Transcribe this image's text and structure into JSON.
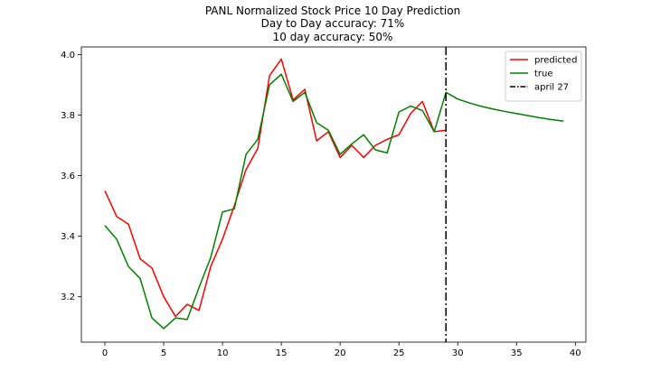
{
  "chart_data": {
    "type": "line",
    "title_lines": [
      "PANL Normalized Stock Price 10 Day Prediction",
      "Day to Day accuracy: 71%",
      "10 day accuracy: 50%"
    ],
    "xlim": [
      -2,
      40.9
    ],
    "ylim": [
      3.05,
      4.025
    ],
    "xticks": [
      0,
      5,
      10,
      15,
      20,
      25,
      30,
      35,
      40
    ],
    "yticks": [
      3.2,
      3.4,
      3.6,
      3.8,
      4.0
    ],
    "ytick_labels": [
      "3.2",
      "3.4",
      "3.6",
      "3.8",
      "4.0"
    ],
    "grid": false,
    "legend_position": "top-right",
    "series": [
      {
        "name": "predicted",
        "color": "#ff0000",
        "x": [
          0,
          1,
          2,
          3,
          4,
          5,
          6,
          7,
          8,
          9,
          10,
          11,
          12,
          13,
          14,
          15,
          16,
          17,
          18,
          19,
          20,
          21,
          22,
          23,
          24,
          25,
          26,
          27,
          28,
          29
        ],
        "y": [
          3.55,
          3.465,
          3.44,
          3.325,
          3.295,
          3.2,
          3.135,
          3.175,
          3.155,
          3.3,
          3.39,
          3.5,
          3.62,
          3.69,
          3.93,
          3.985,
          3.85,
          3.885,
          3.715,
          3.745,
          3.66,
          3.7,
          3.66,
          3.7,
          3.72,
          3.735,
          3.805,
          3.845,
          3.745,
          3.75
        ]
      },
      {
        "name": "true",
        "color": "#008000",
        "x": [
          0,
          1,
          2,
          3,
          4,
          5,
          6,
          7,
          8,
          9,
          10,
          11,
          12,
          13,
          14,
          15,
          16,
          17,
          18,
          19,
          20,
          21,
          22,
          23,
          24,
          25,
          26,
          27,
          28,
          29,
          30,
          31,
          32,
          33,
          34,
          35,
          36,
          37,
          38,
          39
        ],
        "y": [
          3.435,
          3.39,
          3.3,
          3.26,
          3.13,
          3.095,
          3.13,
          3.125,
          3.23,
          3.33,
          3.48,
          3.49,
          3.67,
          3.72,
          3.9,
          3.935,
          3.845,
          3.875,
          3.775,
          3.75,
          3.67,
          3.705,
          3.735,
          3.685,
          3.675,
          3.81,
          3.83,
          3.815,
          3.745,
          3.875,
          3.853,
          3.84,
          3.829,
          3.82,
          3.812,
          3.805,
          3.798,
          3.791,
          3.785,
          3.78
        ]
      }
    ],
    "vline": {
      "name": "april 27",
      "x": 29,
      "color": "#000000",
      "style": "dashdot"
    }
  }
}
